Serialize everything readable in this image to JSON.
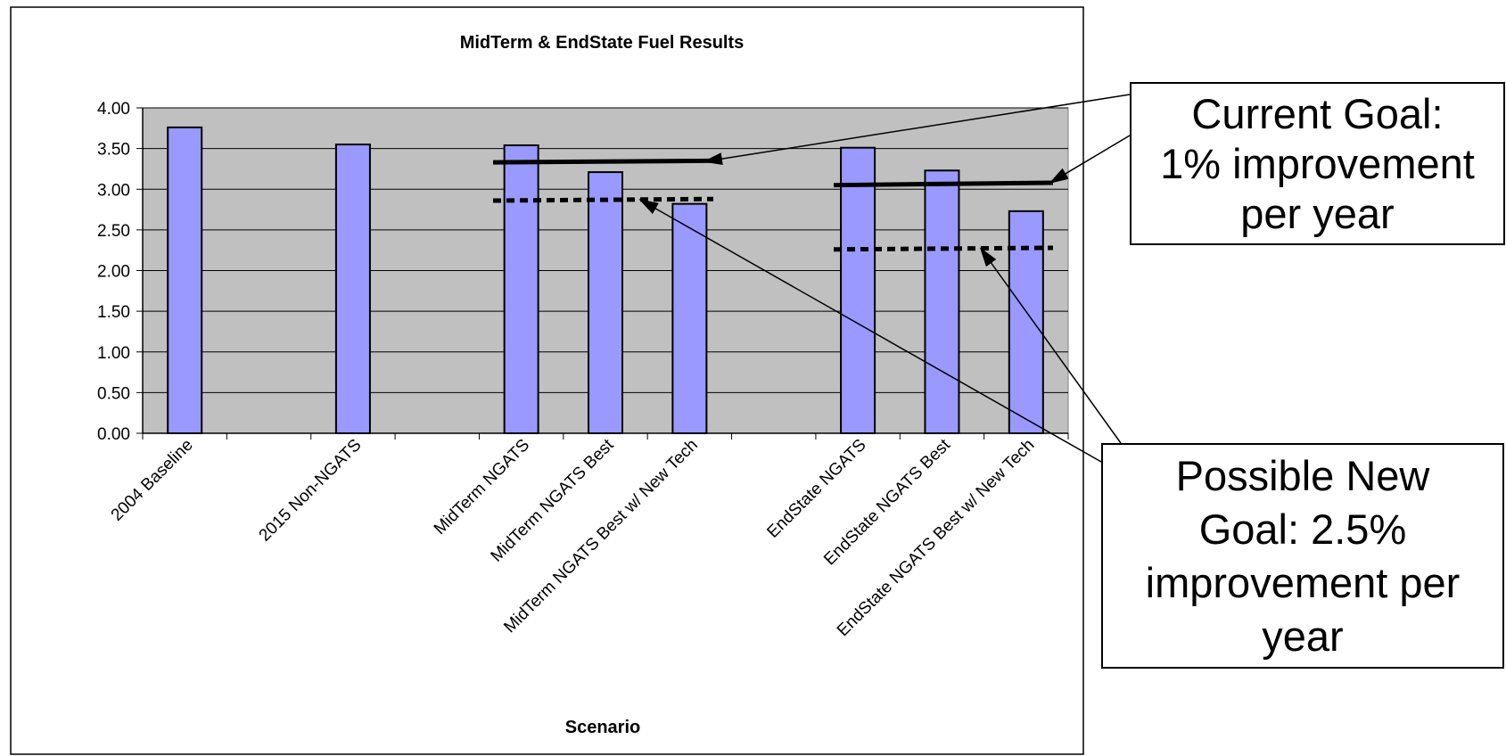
{
  "chart_data": {
    "type": "bar",
    "title": "MidTerm & EndState Fuel Results",
    "xlabel": "Scenario",
    "ylabel": "",
    "ylim": [
      0,
      4
    ],
    "yticks": [
      "0.00",
      "0.50",
      "1.00",
      "1.50",
      "2.00",
      "2.50",
      "3.00",
      "3.50",
      "4.00"
    ],
    "grid": true,
    "legend": "none",
    "categories": [
      "2004 Baseline",
      "",
      "2015 Non-NGATS",
      "",
      "MidTerm NGATS",
      "MidTerm NGATS Best",
      "MidTerm NGATS Best w/ New Tech",
      "",
      "EndState NGATS",
      "EndState NGATS Best",
      "EndState NGATS Best w/ New Tech"
    ],
    "values": [
      3.76,
      null,
      3.55,
      null,
      3.54,
      3.21,
      2.82,
      null,
      3.51,
      3.23,
      2.73
    ],
    "goal_lines": [
      {
        "group": "MidTerm",
        "style": "solid",
        "values": [
          3.33,
          3.35
        ]
      },
      {
        "group": "MidTerm",
        "style": "dotted",
        "values": [
          2.86,
          2.88
        ]
      },
      {
        "group": "EndState",
        "style": "solid",
        "values": [
          3.05,
          3.08
        ]
      },
      {
        "group": "EndState",
        "style": "dotted",
        "values": [
          2.26,
          2.28
        ]
      }
    ]
  },
  "colors": {
    "bar_fill": "#9999ff",
    "plot_bg": "#c0c0c0",
    "line": "#000000"
  },
  "callouts": {
    "current_goal": [
      "Current Goal:",
      "1% improvement",
      "per year"
    ],
    "new_goal": [
      "Possible New",
      "Goal: 2.5%",
      "improvement per",
      "year"
    ]
  }
}
